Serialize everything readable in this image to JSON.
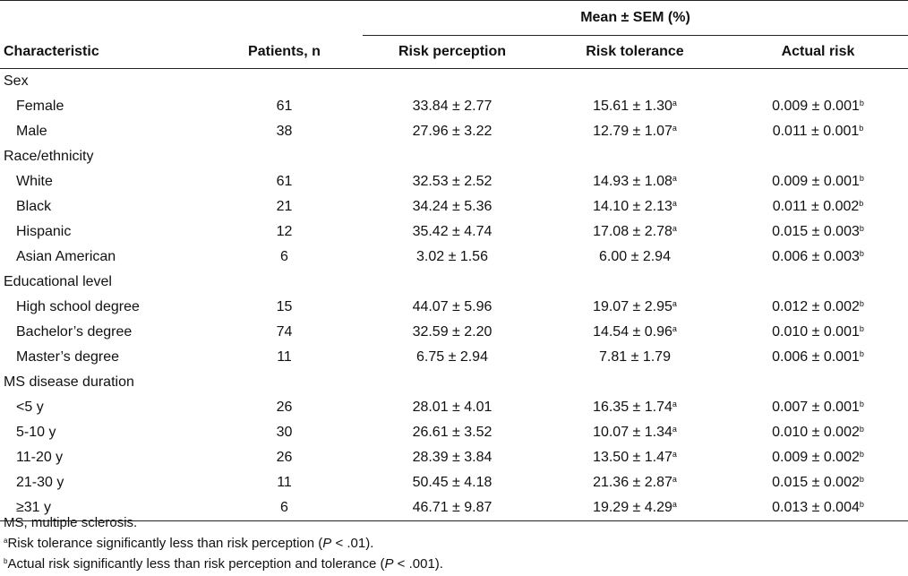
{
  "header": {
    "group_label": "Mean ± SEM (%)",
    "columns": [
      "Characteristic",
      "Patients, n",
      "Risk perception",
      "Risk tolerance",
      "Actual risk"
    ]
  },
  "rows": [
    {
      "kind": "category",
      "label": "Sex"
    },
    {
      "kind": "item",
      "label": "Female",
      "n": "61",
      "perception": "33.84 ± 2.77",
      "tolerance": "15.61 ± 1.30",
      "tol_sup": "a",
      "actual": "0.009 ± 0.001",
      "act_sup": "b"
    },
    {
      "kind": "item",
      "label": "Male",
      "n": "38",
      "perception": "27.96 ± 3.22",
      "tolerance": "12.79 ± 1.07",
      "tol_sup": "a",
      "actual": "0.011 ± 0.001",
      "act_sup": "b"
    },
    {
      "kind": "category",
      "label": "Race/ethnicity"
    },
    {
      "kind": "item",
      "label": "White",
      "n": "61",
      "perception": "32.53 ± 2.52",
      "tolerance": "14.93 ± 1.08",
      "tol_sup": "a",
      "actual": "0.009 ± 0.001",
      "act_sup": "b"
    },
    {
      "kind": "item",
      "label": "Black",
      "n": "21",
      "perception": "34.24 ± 5.36",
      "tolerance": "14.10 ± 2.13",
      "tol_sup": "a",
      "actual": "0.011 ± 0.002",
      "act_sup": "b"
    },
    {
      "kind": "item",
      "label": "Hispanic",
      "n": "12",
      "perception": "35.42 ± 4.74",
      "tolerance": "17.08 ± 2.78",
      "tol_sup": "a",
      "actual": "0.015 ± 0.003",
      "act_sup": "b"
    },
    {
      "kind": "item",
      "label": "Asian American",
      "n": "6",
      "perception": "3.02 ± 1.56",
      "tolerance": "6.00 ± 2.94",
      "tol_sup": "",
      "actual": "0.006 ± 0.003",
      "act_sup": "b"
    },
    {
      "kind": "category",
      "label": "Educational level"
    },
    {
      "kind": "item",
      "label": "High school degree",
      "n": "15",
      "perception": "44.07 ± 5.96",
      "tolerance": "19.07 ± 2.95",
      "tol_sup": "a",
      "actual": "0.012 ± 0.002",
      "act_sup": "b"
    },
    {
      "kind": "item",
      "label": "Bachelor’s degree",
      "n": "74",
      "perception": "32.59 ± 2.20",
      "tolerance": "14.54 ± 0.96",
      "tol_sup": "a",
      "actual": "0.010 ± 0.001",
      "act_sup": "b"
    },
    {
      "kind": "item",
      "label": "Master’s degree",
      "n": "11",
      "perception": "6.75 ± 2.94",
      "tolerance": "7.81 ± 1.79",
      "tol_sup": "",
      "actual": "0.006 ± 0.001",
      "act_sup": "b"
    },
    {
      "kind": "category",
      "label": "MS disease duration"
    },
    {
      "kind": "item",
      "label": "<5 y",
      "n": "26",
      "perception": "28.01 ± 4.01",
      "tolerance": "16.35 ± 1.74",
      "tol_sup": "a",
      "actual": "0.007 ± 0.001",
      "act_sup": "b"
    },
    {
      "kind": "item",
      "label": "5-10 y",
      "n": "30",
      "perception": "26.61 ± 3.52",
      "tolerance": "10.07 ± 1.34",
      "tol_sup": "a",
      "actual": "0.010 ± 0.002",
      "act_sup": "b"
    },
    {
      "kind": "item",
      "label": "11-20 y",
      "n": "26",
      "perception": "28.39 ± 3.84",
      "tolerance": "13.50 ± 1.47",
      "tol_sup": "a",
      "actual": "0.009 ± 0.002",
      "act_sup": "b"
    },
    {
      "kind": "item",
      "label": "21-30 y",
      "n": "11",
      "perception": "50.45 ± 4.18",
      "tolerance": "21.36 ± 2.87",
      "tol_sup": "a",
      "actual": "0.015 ± 0.002",
      "act_sup": "b"
    },
    {
      "kind": "item",
      "label": "≥31 y",
      "n": "6",
      "perception": "46.71 ± 9.87",
      "tolerance": "19.29 ± 4.29",
      "tol_sup": "a",
      "actual": "0.013 ± 0.004",
      "act_sup": "b"
    }
  ],
  "footnotes": {
    "abbrev": "MS, multiple sclerosis.",
    "a_mark": "a",
    "a_text": "Risk tolerance significantly less than risk perception (",
    "a_p": "P",
    "a_tail": " < .01).",
    "b_mark": "b",
    "b_text": "Actual risk significantly less than risk perception and tolerance (",
    "b_p": "P",
    "b_tail": " < .001)."
  }
}
